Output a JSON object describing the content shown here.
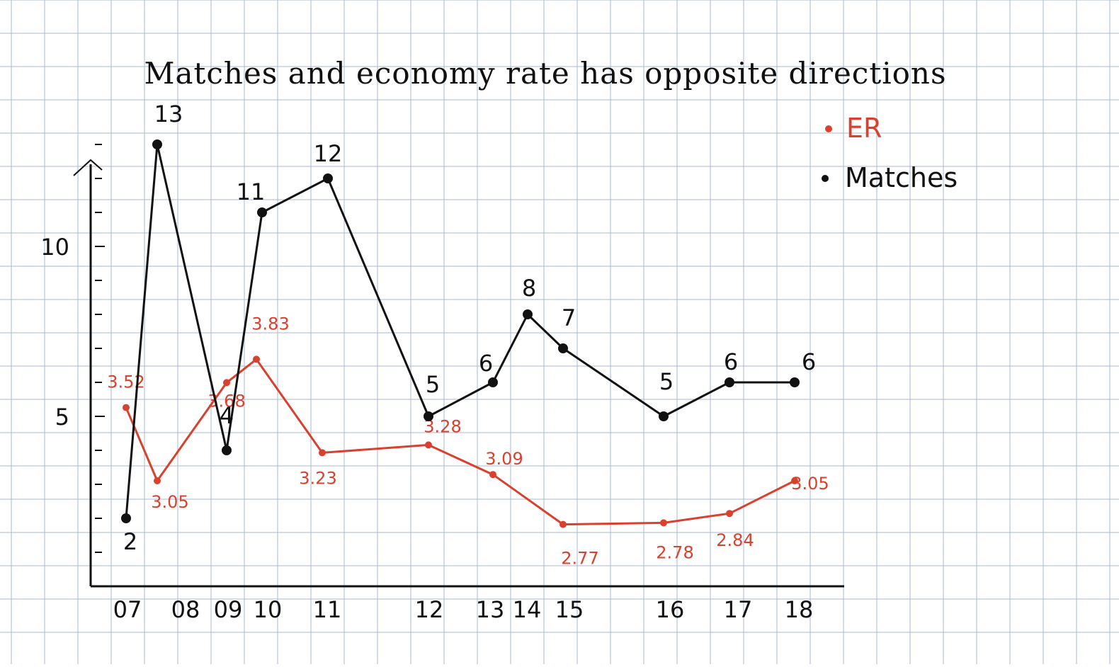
{
  "chart_data": {
    "type": "line",
    "title": "Matches and economy rate has opposite directions",
    "xlabel": "",
    "ylabel": "",
    "categories": [
      "07",
      "08",
      "09",
      "10",
      "11",
      "12",
      "13",
      "14",
      "15",
      "16",
      "17",
      "18"
    ],
    "y_tick_labels": [
      {
        "value": 5,
        "label": "5"
      },
      {
        "value": 10,
        "label": "10"
      }
    ],
    "ylim": [
      0,
      14
    ],
    "grid": true,
    "legend_position": "top-right",
    "colors": {
      "matches": "#111111",
      "er": "#d9412e",
      "grid": "#a9b8d6",
      "axis": "#111111"
    },
    "series": [
      {
        "name": "ER",
        "color": "#d9412e",
        "points": [
          {
            "x": "07",
            "y": 3.52
          },
          {
            "x": "08",
            "y": 3.05
          },
          {
            "x": "09",
            "y": 3.68
          },
          {
            "x": "10",
            "y": 3.83
          },
          {
            "x": "11",
            "y": 3.23
          },
          {
            "x": "12",
            "y": 3.28
          },
          {
            "x": "13",
            "y": 3.09
          },
          {
            "x": "14",
            "y": 2.77
          },
          {
            "x": "15",
            "y": 2.78
          },
          {
            "x": "16",
            "y": 2.84
          },
          {
            "x": "17",
            "y": 3.05
          }
        ],
        "labels": [
          "3.52",
          "3.05",
          "3.68",
          "3.83",
          "3.23",
          "3.28",
          "3.09",
          "2.77",
          "2.78",
          "2.84",
          "3.05"
        ]
      },
      {
        "name": "Matches",
        "color": "#111111",
        "points": [
          {
            "x": "07",
            "y": 2
          },
          {
            "x": "08",
            "y": 13
          },
          {
            "x": "09",
            "y": 4
          },
          {
            "x": "10",
            "y": 11
          },
          {
            "x": "11",
            "y": 12
          },
          {
            "x": "12",
            "y": 5
          },
          {
            "x": "13",
            "y": 6
          },
          {
            "x": "14",
            "y": 8
          },
          {
            "x": "15",
            "y": 7
          },
          {
            "x": "16",
            "y": 5
          },
          {
            "x": "17",
            "y": 6
          },
          {
            "x": "18",
            "y": 6
          }
        ],
        "labels": [
          "2",
          "13",
          "4",
          "11",
          "12",
          "5",
          "6",
          "8",
          "7",
          "5",
          "6",
          "6"
        ]
      }
    ]
  }
}
